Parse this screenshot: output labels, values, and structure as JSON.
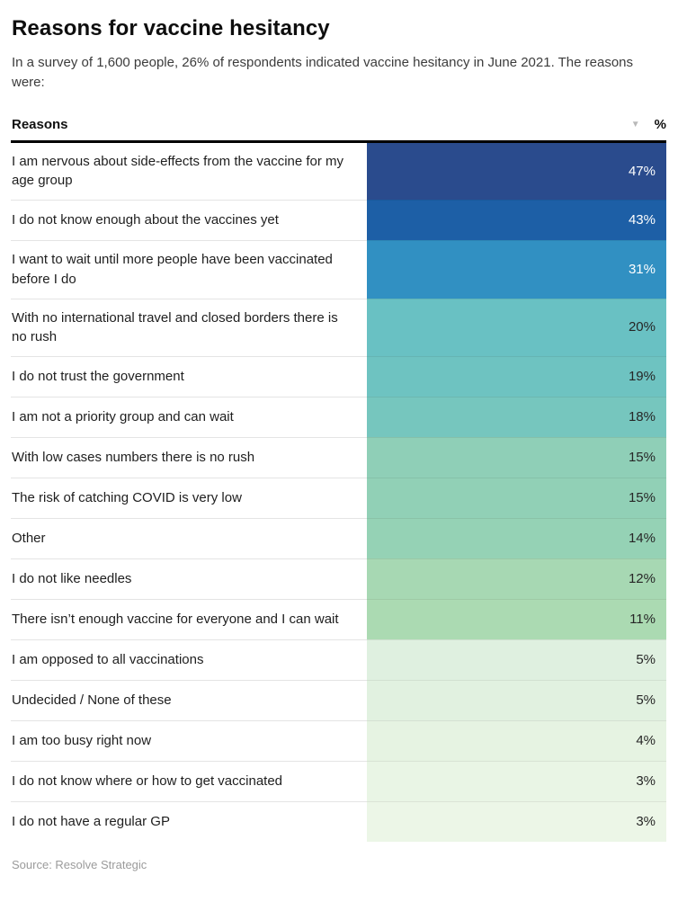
{
  "page": {
    "title": "Reasons for vaccine hesitancy",
    "subtitle": "In a survey of 1,600 people, 26% of respondents indicated vaccine hesitancy in June 2021. The reasons were:",
    "source": "Source: Resolve Strategic"
  },
  "table_header": {
    "reasons_label": "Reasons",
    "percent_label": "%",
    "sort_icon": "▼"
  },
  "colors": {
    "header_border": "#000000",
    "row_divider": "#e4e4e4",
    "light_text": "#ffffff",
    "dark_text": "#262626",
    "scale_high": "#2a4b8d",
    "scale_low": "#ecf6e7"
  },
  "chart_data": {
    "type": "table",
    "title": "Reasons for vaccine hesitancy",
    "subtitle": "In a survey of 1,600 people, 26% of respondents indicated vaccine hesitancy in June 2021. The reasons were:",
    "columns": [
      "Reasons",
      "%"
    ],
    "value_suffix": "%",
    "sort": {
      "column": "%",
      "direction": "descending"
    },
    "color_encoding": "value column background maps value: dark blue (high) to pale green (low)",
    "categories": [
      "I am nervous about side-effects from the vaccine for my age group",
      "I do not know enough about the vaccines yet",
      "I want to wait until more people have been vaccinated before I do",
      "With no international travel and closed borders there is no rush",
      "I do not trust the government",
      "I am not a priority group and can wait",
      "With low cases numbers there is no rush",
      "The risk of catching COVID is very low",
      "Other",
      "I do not like needles",
      "There isn’t enough vaccine for everyone and I can wait",
      "I am opposed to all vaccinations",
      "Undecided / None of these",
      "I am too busy right now",
      "I do not know where or how to get vaccinated",
      "I do not have a regular GP"
    ],
    "values": [
      47,
      43,
      31,
      20,
      19,
      18,
      15,
      15,
      14,
      12,
      11,
      5,
      5,
      4,
      3,
      3
    ],
    "rows": [
      {
        "label": "I am nervous about side-effects from the vaccine for my age group",
        "value": 47,
        "display": "47%",
        "color": "#2a4b8d",
        "text_color": "#ffffff"
      },
      {
        "label": "I do not know enough about the vaccines yet",
        "value": 43,
        "display": "43%",
        "color": "#1d5fa6",
        "text_color": "#ffffff"
      },
      {
        "label": "I want to wait until more people have been vaccinated before I do",
        "value": 31,
        "display": "31%",
        "color": "#3190c2",
        "text_color": "#ffffff"
      },
      {
        "label": "With no international travel and closed borders there is no rush",
        "value": 20,
        "display": "20%",
        "color": "#69c1c3",
        "text_color": "#262626"
      },
      {
        "label": "I do not trust the government",
        "value": 19,
        "display": "19%",
        "color": "#6ec3c1",
        "text_color": "#262626"
      },
      {
        "label": "I am not a priority group and can wait",
        "value": 18,
        "display": "18%",
        "color": "#76c6be",
        "text_color": "#262626"
      },
      {
        "label": "With low cases numbers there is no rush",
        "value": 15,
        "display": "15%",
        "color": "#8fcfb7",
        "text_color": "#262626"
      },
      {
        "label": "The risk of catching COVID is very low",
        "value": 15,
        "display": "15%",
        "color": "#91d0b6",
        "text_color": "#262626"
      },
      {
        "label": "Other",
        "value": 14,
        "display": "14%",
        "color": "#95d2b5",
        "text_color": "#262626"
      },
      {
        "label": "I do not like needles",
        "value": 12,
        "display": "12%",
        "color": "#a7d8b3",
        "text_color": "#262626"
      },
      {
        "label": "There isn’t enough vaccine for everyone and I can wait",
        "value": 11,
        "display": "11%",
        "color": "#abdab2",
        "text_color": "#262626"
      },
      {
        "label": "I am opposed to all vaccinations",
        "value": 5,
        "display": "5%",
        "color": "#dff0e0",
        "text_color": "#262626"
      },
      {
        "label": "Undecided / None of these",
        "value": 5,
        "display": "5%",
        "color": "#e1f1e0",
        "text_color": "#262626"
      },
      {
        "label": "I am too busy right now",
        "value": 4,
        "display": "4%",
        "color": "#e6f3e2",
        "text_color": "#262626"
      },
      {
        "label": "I do not know where or how to get vaccinated",
        "value": 3,
        "display": "3%",
        "color": "#e9f5e5",
        "text_color": "#262626"
      },
      {
        "label": "I do not have a regular GP",
        "value": 3,
        "display": "3%",
        "color": "#ecf6e7",
        "text_color": "#262626"
      }
    ]
  }
}
